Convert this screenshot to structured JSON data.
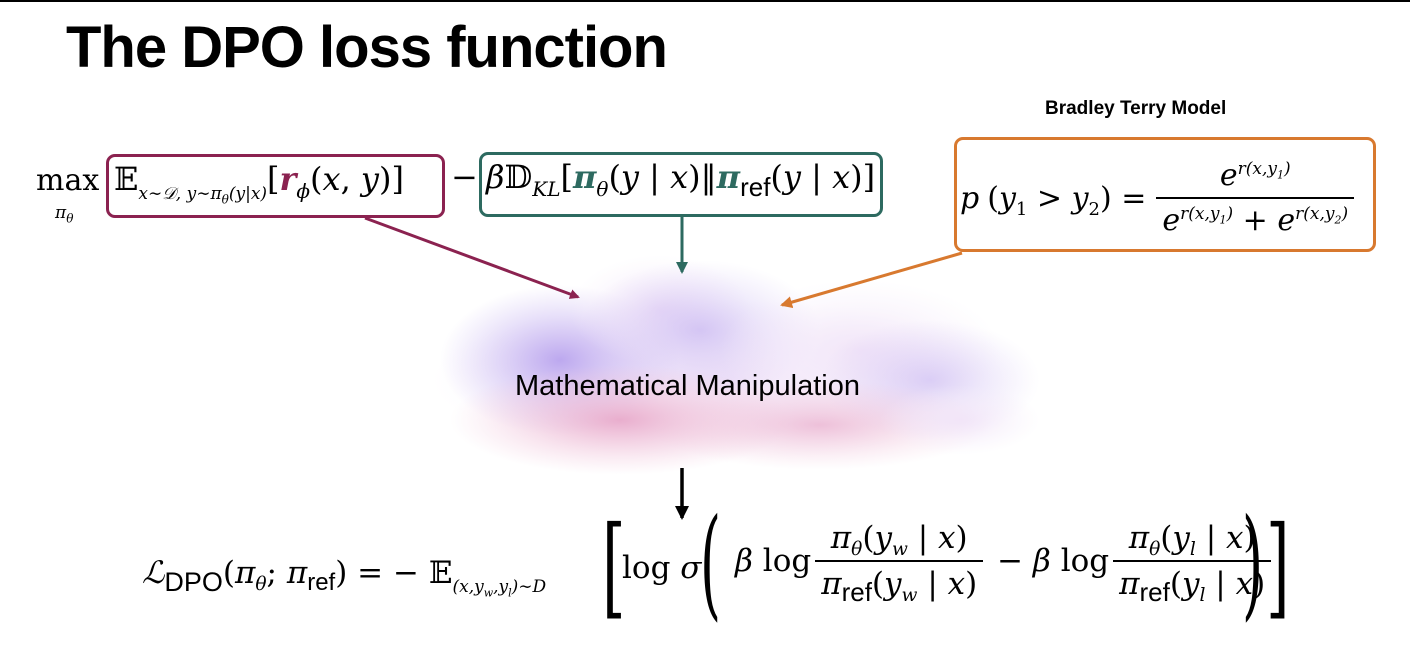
{
  "slide": {
    "title": "The DPO loss function",
    "bradley_terry_title": "Bradley Terry Model",
    "cloud_label": "Mathematical Manipulation"
  },
  "colors": {
    "reward_box": "#8b2250",
    "kl_box": "#2d6a60",
    "bt_box": "#d8792f",
    "cloud_purple": "#b9a4ee",
    "cloud_pink": "#e8aacb"
  }
}
